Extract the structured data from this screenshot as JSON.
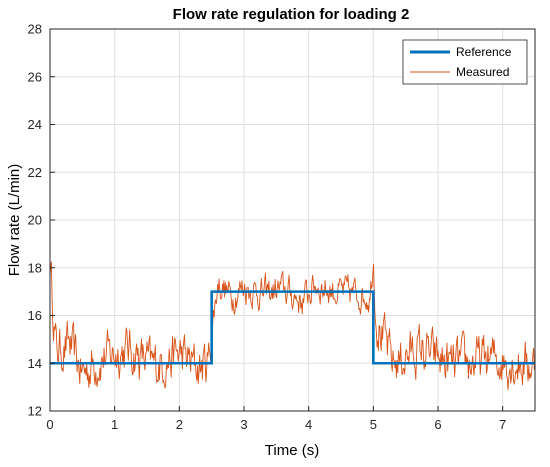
{
  "chart_data": {
    "type": "line",
    "title": "Flow rate regulation for loading 2",
    "xlabel": "Time (s)",
    "ylabel": "Flow rate (L/min)",
    "xlim": [
      0,
      7.5
    ],
    "ylim": [
      12,
      28
    ],
    "xticks": [
      "0",
      "1",
      "2",
      "3",
      "4",
      "5",
      "6",
      "7"
    ],
    "yticks": [
      "12",
      "14",
      "16",
      "18",
      "20",
      "22",
      "24",
      "26",
      "28"
    ],
    "grid": true,
    "legend_position": "top-right",
    "series": [
      {
        "name": "Reference",
        "color": "#0072BD",
        "x": [
          0,
          2.5,
          2.5,
          5.0,
          5.0,
          7.5
        ],
        "y": [
          14,
          14,
          17,
          17,
          14,
          14
        ]
      },
      {
        "name": "Measured",
        "color": "#D95319",
        "x": [
          0,
          0.05,
          0.1,
          0.3,
          0.5,
          0.8,
          1.2,
          1.6,
          2.0,
          2.3,
          2.45,
          2.55,
          2.6,
          2.8,
          3.0,
          3.3,
          3.6,
          3.9,
          4.1,
          4.4,
          4.8,
          4.95,
          5.0,
          5.05,
          5.3,
          5.7,
          6.2,
          6.8,
          7.5
        ],
        "y": [
          18.3,
          16.3,
          14.5,
          14.8,
          13.6,
          14.2,
          14.6,
          13.9,
          14.4,
          13.8,
          14.1,
          16.4,
          17.4,
          16.8,
          17.2,
          16.9,
          17.1,
          16.6,
          17.3,
          17.0,
          16.9,
          16.8,
          18.5,
          15.8,
          14.0,
          14.6,
          13.9,
          14.2,
          13.9
        ]
      }
    ],
    "noise": {
      "low_amp": 1.1,
      "high_amp": 0.75
    }
  }
}
